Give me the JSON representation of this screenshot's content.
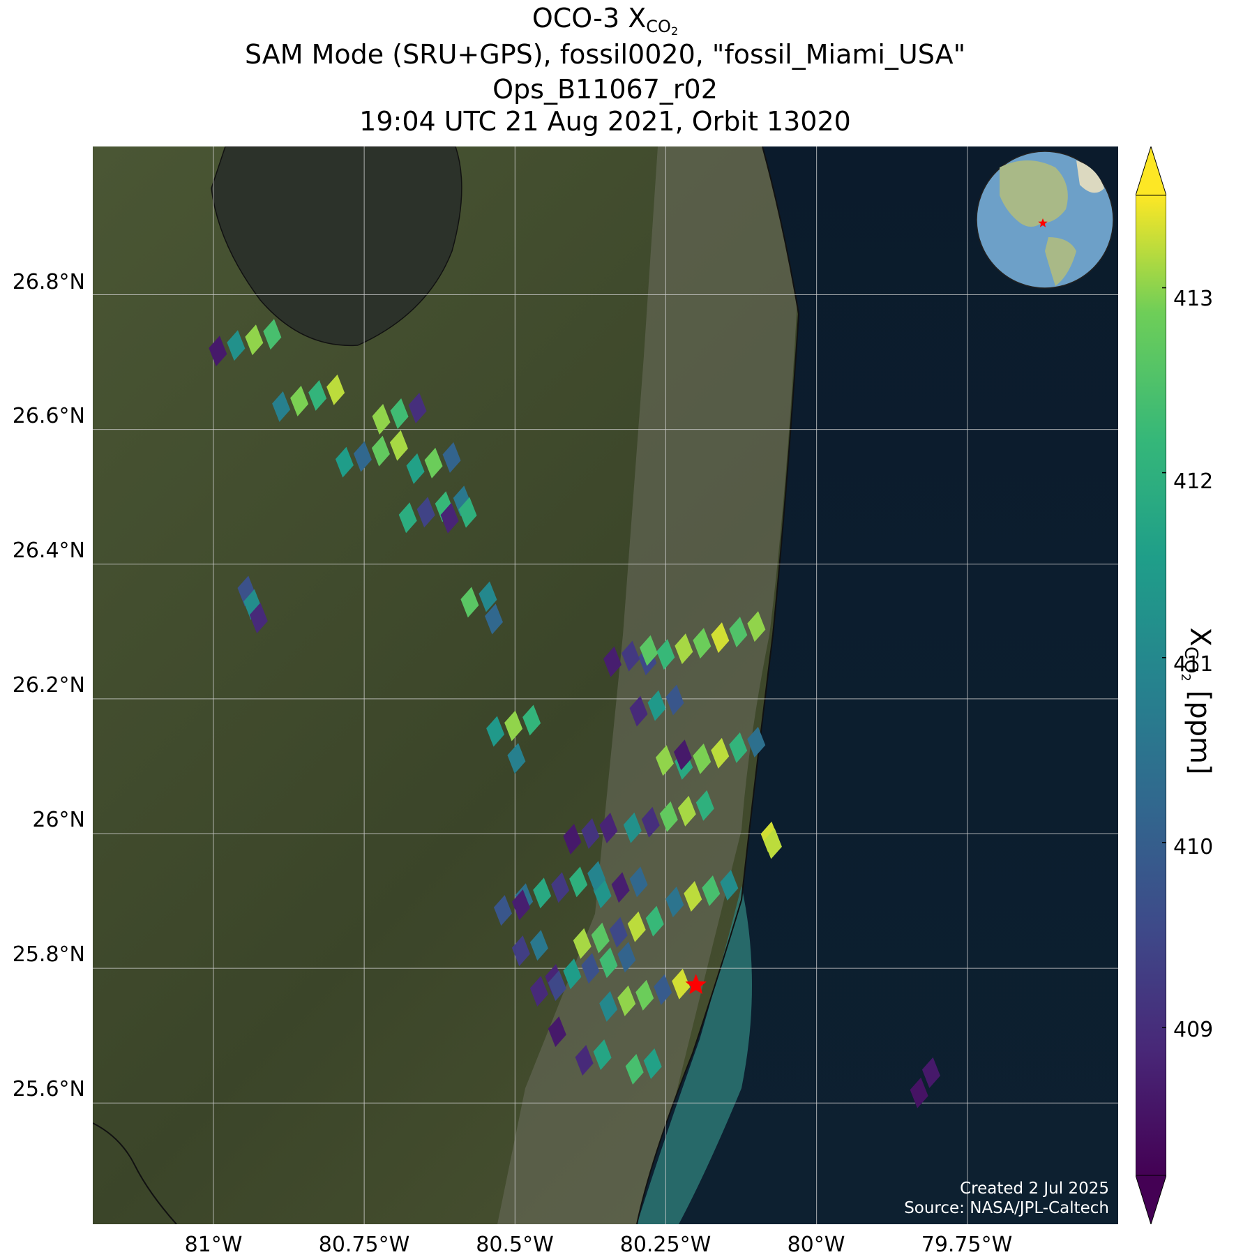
{
  "title": {
    "line1_main": "OCO-3 X",
    "line1_sub": "CO",
    "line1_sub2": "2",
    "line2": "SAM Mode (SRU+GPS), fossil0020, \"fossil_Miami_USA\"",
    "line3": "Ops_B11067_r02",
    "line4": "19:04 UTC 21 Aug 2021, Orbit 13020"
  },
  "map": {
    "lon_range": [
      -81.2,
      -79.5
    ],
    "lat_range": [
      25.42,
      27.02
    ],
    "lat_labels": [
      "26.8°N",
      "26.6°N",
      "26.4°N",
      "26.2°N",
      "26°N",
      "25.8°N",
      "25.6°N"
    ],
    "lat_values": [
      26.8,
      26.6,
      26.4,
      26.2,
      26.0,
      25.8,
      25.6
    ],
    "lon_labels": [
      "81°W",
      "80.75°W",
      "80.5°W",
      "80.25°W",
      "80°W",
      "79.75°W"
    ],
    "lon_values": [
      -81.0,
      -80.75,
      -80.5,
      -80.25,
      -80.0,
      -79.75
    ],
    "site_marker": {
      "lon": -80.2,
      "lat": 25.775,
      "color": "#ff0000"
    },
    "credit_line1": "Created 2 Jul 2025",
    "credit_line2": "Source: NASA/JPL-Caltech",
    "colors": {
      "land": "#3f4a2c",
      "ocean": "#0a1a2b",
      "grid": "#cfcfcf",
      "marker": "#ff0000"
    }
  },
  "colorbar": {
    "tick_labels": [
      "413",
      "412",
      "411",
      "410",
      "409"
    ],
    "tick_values": [
      413,
      412,
      411,
      410,
      409
    ],
    "range": [
      408.2,
      413.5
    ],
    "label_main": "X",
    "label_sub": "CO",
    "label_sub2": "2",
    "label_units": " [ppm]",
    "colormap": "viridis"
  },
  "chart_data": {
    "type": "heatmap",
    "colormap": "viridis",
    "units": "ppm",
    "swaths": [
      {
        "lon0": -81.0,
        "lat0": 26.77,
        "lon1": -80.58,
        "lat1": 26.44,
        "width_deg": 0.13,
        "values": [
          408.6,
          411.2,
          413.0,
          412.4,
          410.8,
          412.9,
          412.1,
          413.2,
          411.5,
          410.2,
          412.7,
          413.1,
          411.9,
          409.4,
          412.2,
          410.6
        ]
      },
      {
        "lon0": -80.72,
        "lat0": 26.66,
        "lon1": -80.55,
        "lat1": 26.44,
        "width_deg": 0.08,
        "values": [
          413.0,
          412.3,
          409.0,
          411.6,
          412.8,
          410.1,
          408.8,
          412.0
        ]
      },
      {
        "lon0": -80.22,
        "lat0": 26.36,
        "lon1": -80.1,
        "lat1": 26.05,
        "width_deg": 0.22,
        "values": [
          409.5,
          412.2,
          413.1,
          412.8,
          413.3,
          412.5,
          413.0,
          411.8,
          412.9,
          413.2,
          412.1,
          410.4
        ]
      },
      {
        "lon0": -80.33,
        "lat0": 26.3,
        "lon1": -80.2,
        "lat1": 26.08,
        "width_deg": 0.1,
        "values": [
          408.7,
          409.2,
          412.6,
          408.9,
          411.4,
          409.8,
          413.0,
          408.6
        ]
      },
      {
        "lon0": -80.28,
        "lat0": 26.08,
        "lon1": -80.14,
        "lat1": 25.86,
        "width_deg": 0.14,
        "values": [
          411.2,
          409.0,
          412.7,
          413.1,
          412.0,
          410.5,
          413.2,
          412.4,
          411.1
        ]
      },
      {
        "lon0": -80.4,
        "lat0": 26.04,
        "lon1": -80.3,
        "lat1": 25.88,
        "width_deg": 0.08,
        "values": [
          408.6,
          409.1,
          408.8,
          411.3,
          408.7,
          410.2
        ]
      },
      {
        "lon0": -80.45,
        "lat0": 25.98,
        "lon1": -80.3,
        "lat1": 25.62,
        "width_deg": 0.16,
        "values": [
          410.4,
          411.8,
          409.2,
          412.0,
          410.9,
          408.8,
          411.5,
          409.7,
          412.3,
          410.1,
          408.9,
          411.7
        ]
      },
      {
        "lon0": -80.35,
        "lat0": 25.9,
        "lon1": -80.22,
        "lat1": 25.62,
        "width_deg": 0.14,
        "values": [
          413.1,
          412.6,
          409.5,
          413.2,
          412.2,
          411.0,
          413.0,
          412.8,
          409.9,
          413.3,
          412.4,
          411.6
        ]
      },
      {
        "lon0": -80.52,
        "lat0": 25.92,
        "lon1": -80.4,
        "lat1": 25.68,
        "width_deg": 0.07,
        "values": [
          409.8,
          408.7,
          409.3,
          410.6,
          408.9,
          409.5,
          408.6
        ]
      },
      {
        "lon0": -80.52,
        "lat0": 26.18,
        "lon1": -80.45,
        "lat1": 26.1,
        "width_deg": 0.08,
        "values": [
          411.4,
          413.0,
          412.1,
          410.8
        ]
      },
      {
        "lon0": -80.58,
        "lat0": 26.36,
        "lon1": -80.5,
        "lat1": 26.31,
        "width_deg": 0.05,
        "values": [
          412.6,
          411.0,
          410.2
        ]
      },
      {
        "lon0": -80.95,
        "lat0": 26.37,
        "lon1": -80.92,
        "lat1": 26.31,
        "width_deg": 0.03,
        "values": [
          409.7,
          411.1,
          408.9
        ]
      },
      {
        "lon0": -80.08,
        "lat0": 26.0,
        "lon1": -80.07,
        "lat1": 25.98,
        "width_deg": 0.04,
        "values": [
          413.3,
          413.2
        ]
      },
      {
        "lon0": -79.8,
        "lat0": 25.66,
        "lon1": -79.84,
        "lat1": 25.6,
        "width_deg": 0.02,
        "values": [
          408.6,
          408.5
        ]
      }
    ]
  }
}
